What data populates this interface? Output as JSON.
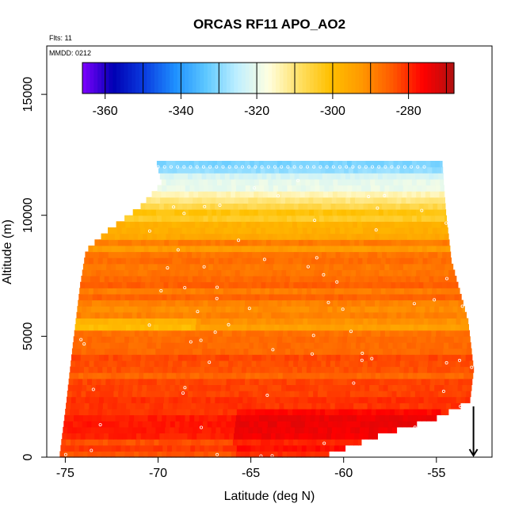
{
  "chart_data": {
    "type": "heatmap",
    "title": "ORCAS RF11 APO_AO2",
    "flights_label": "Flts: 11",
    "date_label": "MMDD: 0212",
    "xlabel": "Latitude (deg N)",
    "ylabel": "Altitude (m)",
    "xlim": [
      -76,
      -52
    ],
    "ylim": [
      0,
      17000
    ],
    "x_ticks": [
      -75,
      -70,
      -65,
      -60,
      -55
    ],
    "x_tick_labels": [
      "-75",
      "-70",
      "-65",
      "-60",
      "-55"
    ],
    "y_ticks": [
      0,
      5000,
      10000,
      15000
    ],
    "y_tick_labels": [
      "0",
      "5000",
      "10000",
      "15000"
    ],
    "colorbar": {
      "range": [
        -366,
        -268
      ],
      "ticks": [
        -360,
        -340,
        -320,
        -300,
        -280
      ],
      "tick_labels": [
        "-360",
        "-340",
        "-320",
        "-300",
        "-280"
      ],
      "colors": [
        "#7f00ff",
        "#0000b3",
        "#0a3ce0",
        "#1e90ff",
        "#5ec8ff",
        "#bfefff",
        "#ffffe0",
        "#ffe066",
        "#ffc000",
        "#ff9900",
        "#ff5a00",
        "#ff0000",
        "#b01010"
      ]
    },
    "field_profile": [
      {
        "alt": 0,
        "value": -281
      },
      {
        "alt": 1500,
        "value": -280
      },
      {
        "alt": 3000,
        "value": -283
      },
      {
        "alt": 4500,
        "value": -285
      },
      {
        "alt": 5500,
        "value": -292
      },
      {
        "alt": 6500,
        "value": -288
      },
      {
        "alt": 8000,
        "value": -287
      },
      {
        "alt": 9000,
        "value": -292
      },
      {
        "alt": 10000,
        "value": -302
      },
      {
        "alt": 11000,
        "value": -316
      },
      {
        "alt": 12000,
        "value": -328
      }
    ],
    "coverage": {
      "lat_min": -75.3,
      "lat_max_low": -53.0,
      "top_alt": 12100,
      "left_edge": [
        {
          "alt": 0,
          "lat": -75.3
        },
        {
          "alt": 1800,
          "lat": -75.0
        },
        {
          "alt": 4500,
          "lat": -74.6
        },
        {
          "alt": 7000,
          "lat": -74.2
        },
        {
          "alt": 8400,
          "lat": -73.9
        },
        {
          "alt": 9200,
          "lat": -72.8
        },
        {
          "alt": 10200,
          "lat": -71.0
        },
        {
          "alt": 11200,
          "lat": -69.8
        },
        {
          "alt": 12100,
          "lat": -70.1
        }
      ],
      "right_edge": [
        {
          "alt": 0,
          "lat": -60.8
        },
        {
          "alt": 800,
          "lat": -58.0
        },
        {
          "alt": 1500,
          "lat": -55.0
        },
        {
          "alt": 2200,
          "lat": -53.2
        },
        {
          "alt": 3500,
          "lat": -53.0
        },
        {
          "alt": 5500,
          "lat": -53.3
        },
        {
          "alt": 8000,
          "lat": -54.2
        },
        {
          "alt": 10000,
          "lat": -54.5
        },
        {
          "alt": 12100,
          "lat": -54.7
        }
      ]
    },
    "marker": {
      "lat": -53.0,
      "alt": 700,
      "symbol": "down-arrow"
    }
  }
}
